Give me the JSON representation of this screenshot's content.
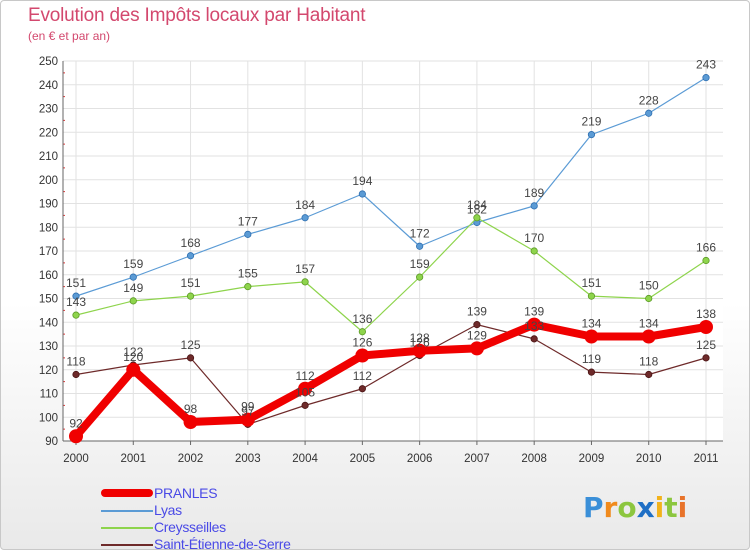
{
  "chart_data": {
    "type": "line",
    "title": "Evolution des Impôts locaux par Habitant",
    "subtitle": "(en € et par an)",
    "xlabel": "",
    "ylabel": "",
    "ylim": [
      90,
      250
    ],
    "y_ticks": [
      90,
      100,
      110,
      120,
      130,
      140,
      150,
      160,
      170,
      180,
      190,
      200,
      210,
      220,
      230,
      240,
      250
    ],
    "x": [
      "2000",
      "2001",
      "2002",
      "2003",
      "2004",
      "2005",
      "2006",
      "2007",
      "2008",
      "2009",
      "2010",
      "2011"
    ],
    "grid": true,
    "legend_position": "bottom-left",
    "series": [
      {
        "name": "PRANLES",
        "color": "#f00000",
        "values": [
          92,
          120,
          98,
          99,
          112,
          126,
          128,
          129,
          139,
          134,
          134,
          138
        ]
      },
      {
        "name": "Lyas",
        "color": "#5b9bd5",
        "values": [
          151,
          159,
          168,
          177,
          184,
          194,
          172,
          182,
          189,
          219,
          228,
          243
        ]
      },
      {
        "name": "Creysseilles",
        "color": "#8ed44c",
        "values": [
          143,
          149,
          151,
          155,
          157,
          136,
          159,
          184,
          170,
          151,
          150,
          166
        ]
      },
      {
        "name": "Saint-Étienne-de-Serre",
        "color": "#6e2a2a",
        "values": [
          118,
          122,
          125,
          97,
          105,
          112,
          126,
          139,
          133,
          119,
          118,
          125
        ]
      }
    ]
  },
  "logo": {
    "letters": [
      {
        "ch": "P",
        "color": "#3a8fd8"
      },
      {
        "ch": "r",
        "color": "#f08a1c"
      },
      {
        "ch": "o",
        "color": "#8cc63f"
      },
      {
        "ch": "x",
        "color": "#1f6fc5"
      },
      {
        "ch": "i",
        "color": "#f2b21b"
      },
      {
        "ch": "t",
        "color": "#8cc63f"
      },
      {
        "ch": "i",
        "color": "#e8732a"
      }
    ]
  }
}
